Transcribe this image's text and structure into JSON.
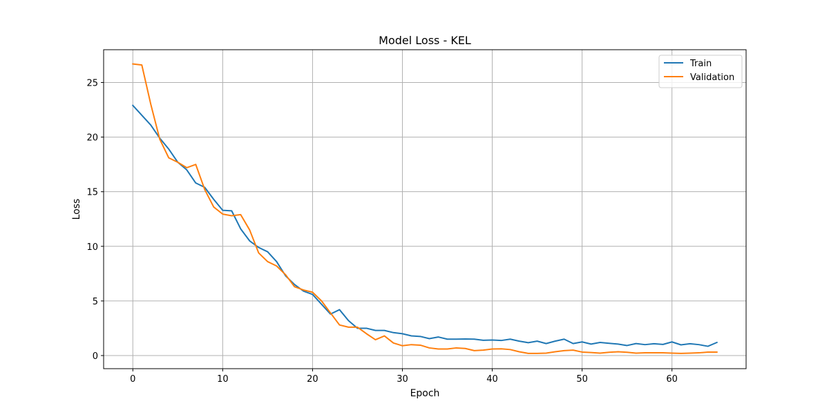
{
  "chart_data": {
    "type": "line",
    "title": "Model Loss - KEL",
    "xlabel": "Epoch",
    "ylabel": "Loss",
    "xlim": [
      -3.25,
      68.25
    ],
    "ylim": [
      -1.2,
      28.0
    ],
    "xticks": [
      0,
      10,
      20,
      30,
      40,
      50,
      60
    ],
    "yticks": [
      0,
      5,
      10,
      15,
      20,
      25
    ],
    "grid": true,
    "legend_position": "top-right",
    "x": [
      0,
      1,
      2,
      3,
      4,
      5,
      6,
      7,
      8,
      9,
      10,
      11,
      12,
      13,
      14,
      15,
      16,
      17,
      18,
      19,
      20,
      21,
      22,
      23,
      24,
      25,
      26,
      27,
      28,
      29,
      30,
      31,
      32,
      33,
      34,
      35,
      36,
      37,
      38,
      39,
      40,
      41,
      42,
      43,
      44,
      45,
      46,
      47,
      48,
      49,
      50,
      51,
      52,
      53,
      54,
      55,
      56,
      57,
      58,
      59,
      60,
      61,
      62,
      63,
      64,
      65
    ],
    "series": [
      {
        "name": "Train",
        "color": "#1f77b4",
        "values": [
          22.9,
          22.0,
          21.1,
          19.9,
          18.9,
          17.7,
          17.0,
          15.8,
          15.4,
          14.3,
          13.3,
          13.25,
          11.6,
          10.5,
          9.9,
          9.5,
          8.6,
          7.3,
          6.5,
          5.9,
          5.6,
          4.7,
          3.8,
          4.2,
          3.2,
          2.5,
          2.5,
          2.3,
          2.3,
          2.1,
          2.0,
          1.8,
          1.75,
          1.55,
          1.7,
          1.5,
          1.5,
          1.52,
          1.5,
          1.4,
          1.42,
          1.38,
          1.5,
          1.32,
          1.18,
          1.32,
          1.1,
          1.32,
          1.5,
          1.1,
          1.25,
          1.05,
          1.2,
          1.12,
          1.05,
          0.92,
          1.1,
          1.0,
          1.08,
          1.02,
          1.25,
          0.98,
          1.08,
          1.0,
          0.85,
          1.2
        ]
      },
      {
        "name": "Validation",
        "color": "#ff7f0e",
        "values": [
          26.7,
          26.6,
          23.0,
          19.8,
          18.1,
          17.7,
          17.2,
          17.5,
          15.2,
          13.6,
          12.95,
          12.8,
          12.9,
          11.5,
          9.4,
          8.6,
          8.2,
          7.4,
          6.3,
          6.0,
          5.8,
          5.0,
          3.9,
          2.8,
          2.6,
          2.6,
          2.0,
          1.45,
          1.8,
          1.15,
          0.9,
          1.0,
          0.95,
          0.7,
          0.6,
          0.6,
          0.7,
          0.65,
          0.45,
          0.5,
          0.6,
          0.62,
          0.55,
          0.35,
          0.2,
          0.2,
          0.22,
          0.35,
          0.45,
          0.5,
          0.32,
          0.28,
          0.22,
          0.3,
          0.35,
          0.3,
          0.22,
          0.25,
          0.25,
          0.25,
          0.22,
          0.2,
          0.22,
          0.25,
          0.32,
          0.32
        ]
      }
    ]
  }
}
